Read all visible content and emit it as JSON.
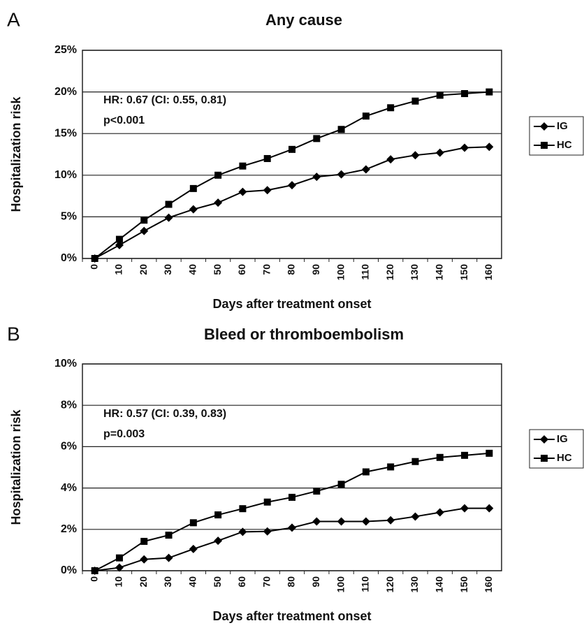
{
  "chart_data": [
    {
      "type": "line",
      "panel_label": "A",
      "title": "Any cause",
      "x_label": "Days after treatment onset",
      "y_label": "Hospitalization risk",
      "annotations": [
        "HR: 0.67  (CI: 0.55, 0.81)",
        "p<0.001"
      ],
      "categories": [
        "0",
        "10",
        "20",
        "30",
        "40",
        "50",
        "60",
        "70",
        "80",
        "90",
        "100",
        "110",
        "120",
        "130",
        "140",
        "150",
        "160"
      ],
      "series": [
        {
          "name": "IG",
          "color": "#000000",
          "marker": "diamond",
          "values": [
            0,
            1.6,
            3.3,
            4.9,
            5.9,
            6.7,
            8.0,
            8.2,
            8.8,
            9.8,
            10.1,
            10.7,
            11.9,
            12.4,
            12.7,
            13.3,
            13.4
          ]
        },
        {
          "name": "HC",
          "color": "#000000",
          "marker": "square",
          "values": [
            0,
            2.3,
            4.6,
            6.5,
            8.4,
            10.0,
            11.1,
            12.0,
            13.1,
            14.4,
            15.5,
            17.1,
            18.1,
            18.9,
            19.6,
            19.8,
            20.0
          ]
        }
      ],
      "ylim": [
        0,
        25
      ],
      "yticks": [
        {
          "value": 0,
          "label": "0%"
        },
        {
          "value": 5,
          "label": "5%"
        },
        {
          "value": 10,
          "label": "10%"
        },
        {
          "value": 15,
          "label": "15%"
        },
        {
          "value": 20,
          "label": "20%"
        },
        {
          "value": 25,
          "label": "25%"
        }
      ],
      "grid": true,
      "legend": "right"
    },
    {
      "type": "line",
      "panel_label": "B",
      "title": "Bleed or thromboembolism",
      "x_label": "Days after treatment onset",
      "y_label": "Hospitalization risk",
      "annotations": [
        "HR: 0.57  (CI: 0.39, 0.83)",
        "p=0.003"
      ],
      "categories": [
        "0",
        "10",
        "20",
        "30",
        "40",
        "50",
        "60",
        "70",
        "80",
        "90",
        "100",
        "110",
        "120",
        "130",
        "140",
        "150",
        "160"
      ],
      "series": [
        {
          "name": "IG",
          "color": "#000000",
          "marker": "diamond",
          "values": [
            0,
            0.15,
            0.55,
            0.62,
            1.05,
            1.45,
            1.88,
            1.9,
            2.08,
            2.38,
            2.38,
            2.38,
            2.44,
            2.62,
            2.82,
            3.02,
            3.02
          ]
        },
        {
          "name": "HC",
          "color": "#000000",
          "marker": "square",
          "values": [
            0,
            0.62,
            1.42,
            1.72,
            2.32,
            2.7,
            3.0,
            3.32,
            3.55,
            3.85,
            4.18,
            4.78,
            5.02,
            5.28,
            5.48,
            5.58,
            5.68
          ]
        }
      ],
      "ylim": [
        0,
        10
      ],
      "yticks": [
        {
          "value": 0,
          "label": "0%"
        },
        {
          "value": 2,
          "label": "2%"
        },
        {
          "value": 4,
          "label": "4%"
        },
        {
          "value": 6,
          "label": "6%"
        },
        {
          "value": 8,
          "label": "8%"
        },
        {
          "value": 10,
          "label": "10%"
        }
      ],
      "grid": true,
      "legend": "right"
    }
  ]
}
